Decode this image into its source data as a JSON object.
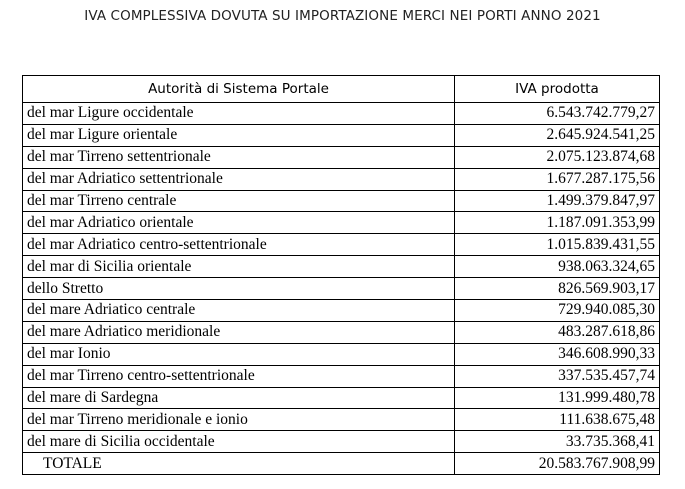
{
  "header": {
    "title": "IVA COMPLESSIVA DOVUTA SU IMPORTAZIONE MERCI NEI PORTI ANNO 2021"
  },
  "table": {
    "columns": [
      "Autorità di Sistema Portale",
      "IVA prodotta"
    ],
    "rows": [
      [
        "del mar Ligure occidentale",
        "6.543.742.779,27"
      ],
      [
        "del mar Ligure orientale",
        "2.645.924.541,25"
      ],
      [
        "del mar Tirreno settentrionale",
        "2.075.123.874,68"
      ],
      [
        "del mar Adriatico settentrionale",
        "1.677.287.175,56"
      ],
      [
        "del mar Tirreno centrale",
        "1.499.379.847,97"
      ],
      [
        "del mar Adriatico orientale",
        "1.187.091.353,99"
      ],
      [
        "del mar Adriatico centro-settentrionale",
        "1.015.839.431,55"
      ],
      [
        "del mar di Sicilia orientale",
        "938.063.324,65"
      ],
      [
        "dello Stretto",
        "826.569.903,17"
      ],
      [
        "del mare Adriatico centrale",
        "729.940.085,30"
      ],
      [
        "del mare Adriatico meridionale",
        "483.287.618,86"
      ],
      [
        "del mar Ionio",
        "346.608.990,33"
      ],
      [
        "del mar Tirreno centro-settentrionale",
        "337.535.457,74"
      ],
      [
        "del mare di Sardegna",
        "131.999.480,78"
      ],
      [
        "del mar Tirreno meridionale e ionio",
        "111.638.675,48"
      ],
      [
        "del mare di Sicilia occidentale",
        "33.735.368,41"
      ]
    ],
    "total": [
      "TOTALE",
      "20.583.767.908,99"
    ]
  }
}
